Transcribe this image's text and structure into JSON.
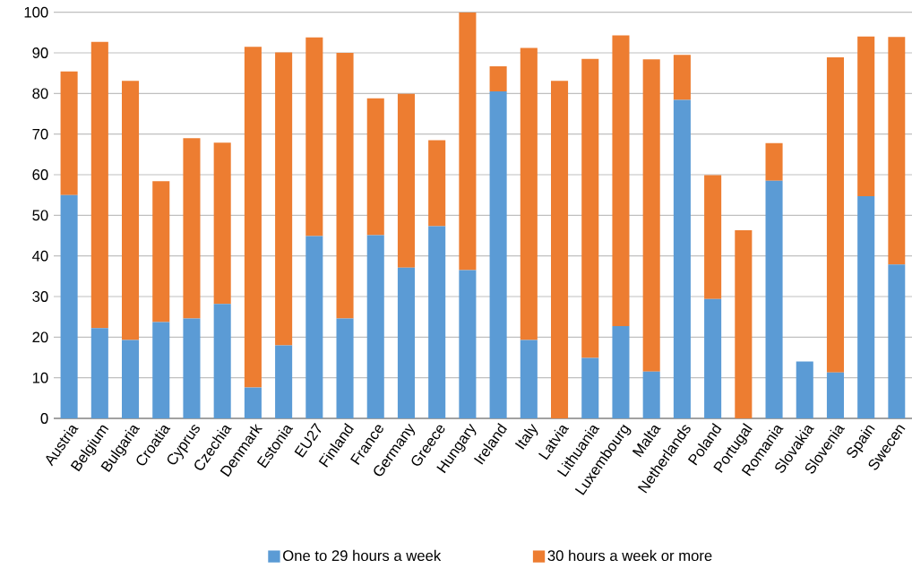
{
  "chart_data": {
    "type": "bar",
    "stacked": true,
    "categories": [
      "Austria",
      "Belgium",
      "Bulgaria",
      "Croatia",
      "Cyprus",
      "Czechia",
      "Denmark",
      "Estonia",
      "EU27",
      "Finland",
      "France",
      "Germany",
      "Greece",
      "Hungary",
      "Ireland",
      "Italy",
      "Latvia",
      "Lithuania",
      "Luxembourg",
      "Malta",
      "Netherlands",
      "Poland",
      "Portugal",
      "Romania",
      "Slovakia",
      "Slovenia",
      "Spain",
      "Swecen"
    ],
    "series": [
      {
        "name": "One to 29 hours a week",
        "color": "#5b9bd5",
        "values": [
          55.0,
          22.2,
          19.3,
          23.7,
          24.6,
          28.2,
          7.6,
          18.0,
          44.9,
          24.6,
          45.1,
          37.1,
          47.3,
          36.5,
          80.5,
          19.3,
          0,
          14.9,
          22.7,
          11.5,
          78.4,
          29.4,
          0,
          58.5,
          14.0,
          11.3,
          54.7,
          37.9
        ]
      },
      {
        "name": "30 hours a week or more",
        "color": "#ed7d31",
        "values": [
          30.4,
          70.5,
          63.8,
          34.7,
          44.4,
          39.7,
          83.9,
          72.1,
          48.9,
          65.4,
          33.7,
          42.8,
          21.2,
          63.5,
          6.2,
          71.9,
          83.1,
          73.6,
          71.6,
          76.9,
          11.1,
          30.5,
          46.3,
          9.3,
          0,
          77.6,
          39.3,
          56.0
        ]
      }
    ],
    "ylim": [
      0,
      100
    ],
    "yticks": [
      0,
      10,
      20,
      30,
      40,
      50,
      60,
      70,
      80,
      90,
      100
    ],
    "grid": "y",
    "legend": "bottom"
  }
}
